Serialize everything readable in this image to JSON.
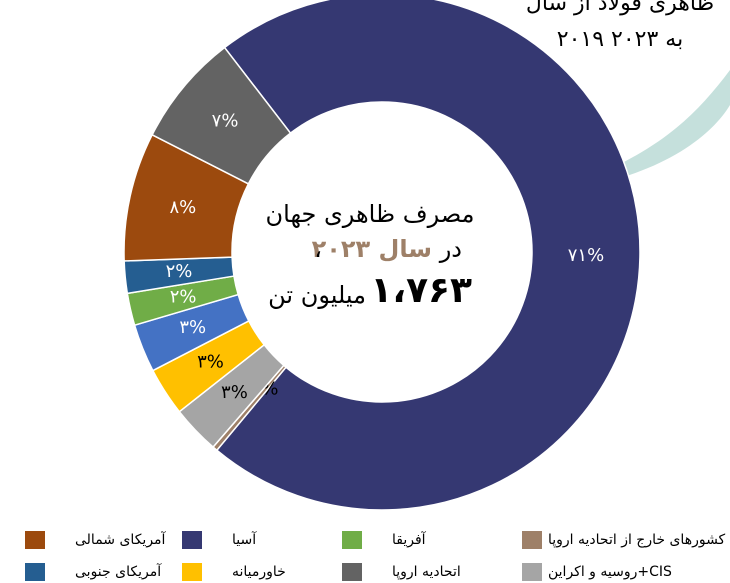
{
  "chart_data": {
    "type": "donut",
    "annotation_lines": [
      "ظاهری فولاد از سال",
      "۲۰۱۹ به ۲۰۲۳"
    ],
    "center_label": {
      "line1": "مصرف ظاهری جهان",
      "line2_prefix": "در",
      "line2_highlight": "سال ۲۰۲۳",
      "line2_suffix": "،",
      "line3_number": "۱،۷۶۳",
      "line3_unit": "میلیون تن"
    },
    "categories": [
      "آسیا",
      "کشورهای خارج از اتحادیه اروپا",
      "روسیه و اکراین+CIS",
      "خاورمیانه",
      null,
      "آفریقا",
      "آمریکای جنوبی",
      "آمریکای شمالی",
      "اتحادیه اروپا"
    ],
    "values": [
      71,
      0.3,
      3,
      3,
      3,
      2,
      2,
      8,
      7
    ],
    "value_labels": [
      "۷۱%",
      "%",
      "۳%",
      "۳%",
      "۳%",
      "۲%",
      "۲%",
      "۸%",
      "۷%"
    ],
    "colors": [
      "#353872",
      "#9e8068",
      "#a5a5a5",
      "#ffc000",
      "#4472c4",
      "#70ad47",
      "#255e91",
      "#9c4a0e",
      "#636363"
    ],
    "label_colors": [
      "#ffffff",
      "#000000",
      "#000000",
      "#000000",
      "#ffffff",
      "#ffffff",
      "#ffffff",
      "#ffffff",
      "#ffffff"
    ]
  }
}
